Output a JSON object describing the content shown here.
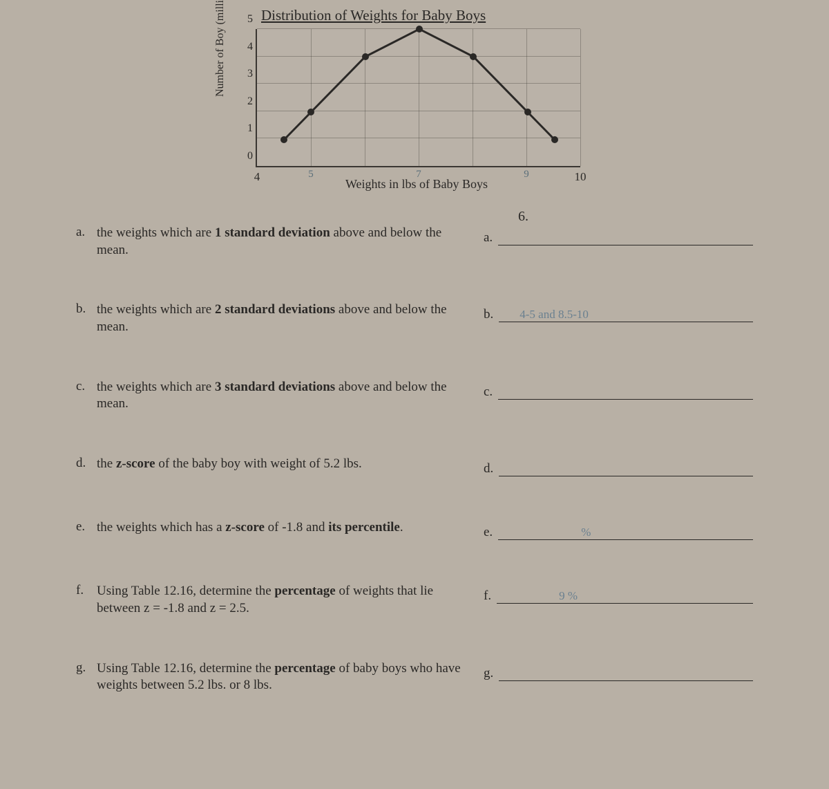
{
  "chart": {
    "title": "Distribution of Weights for Baby Boys",
    "y_label": "Number of Boy (millions)",
    "x_label": "Weights in lbs of Baby Boys",
    "type": "line",
    "x_ticks": [
      4,
      10
    ],
    "x_hand_ticks": {
      "5": 5,
      "7": 7,
      "9": 9
    },
    "y_ticks": [
      0,
      1,
      2,
      3,
      4,
      5
    ],
    "xlim": [
      4,
      10
    ],
    "ylim": [
      0,
      5
    ],
    "data_points": [
      {
        "x": 4.5,
        "y": 1
      },
      {
        "x": 5,
        "y": 2
      },
      {
        "x": 6,
        "y": 4
      },
      {
        "x": 7,
        "y": 5
      },
      {
        "x": 8,
        "y": 4
      },
      {
        "x": 9,
        "y": 2
      },
      {
        "x": 9.5,
        "y": 1
      }
    ],
    "line_color": "#2a2826",
    "point_color": "#2a2826",
    "grid_color": "rgba(60,58,52,0.35)",
    "background_color": "#b8b0a5"
  },
  "section_number": "6.",
  "questions": [
    {
      "letter": "a.",
      "text": "the weights which are 1 standard deviation above and below the mean.",
      "ans_letter": "a.",
      "answer": ""
    },
    {
      "letter": "b.",
      "text": "the weights which are 2 standard deviations above and below the mean.",
      "ans_letter": "b.",
      "answer": "4-5  and  8.5-10"
    },
    {
      "letter": "c.",
      "text": "the weights which are 3 standard deviations above and below the mean.",
      "ans_letter": "c.",
      "answer": ""
    },
    {
      "letter": "d.",
      "text": "the z-score of the baby boy with weight of 5.2 lbs.",
      "ans_letter": "d.",
      "answer": ""
    },
    {
      "letter": "e.",
      "text": "the weights which has a z-score of -1.8 and its percentile.",
      "ans_letter": "e.",
      "answer": "%"
    },
    {
      "letter": "f.",
      "text": "Using Table 12.16, determine the percentage of weights that lie between z = -1.8 and z = 2.5.",
      "ans_letter": "f.",
      "answer": "9   %"
    },
    {
      "letter": "g.",
      "text": "Using Table 12.16, determine the percentage of baby boys who have weights between 5.2 lbs. or 8 lbs.",
      "ans_letter": "g.",
      "answer": ""
    }
  ],
  "emph": {
    "0": "1 standard deviation",
    "1": "2 standard deviations",
    "2": "3 standard deviations",
    "3": "z-score",
    "4_a": "z-score",
    "4_b": "its percentile",
    "5": "percentage",
    "6": "percentage"
  }
}
